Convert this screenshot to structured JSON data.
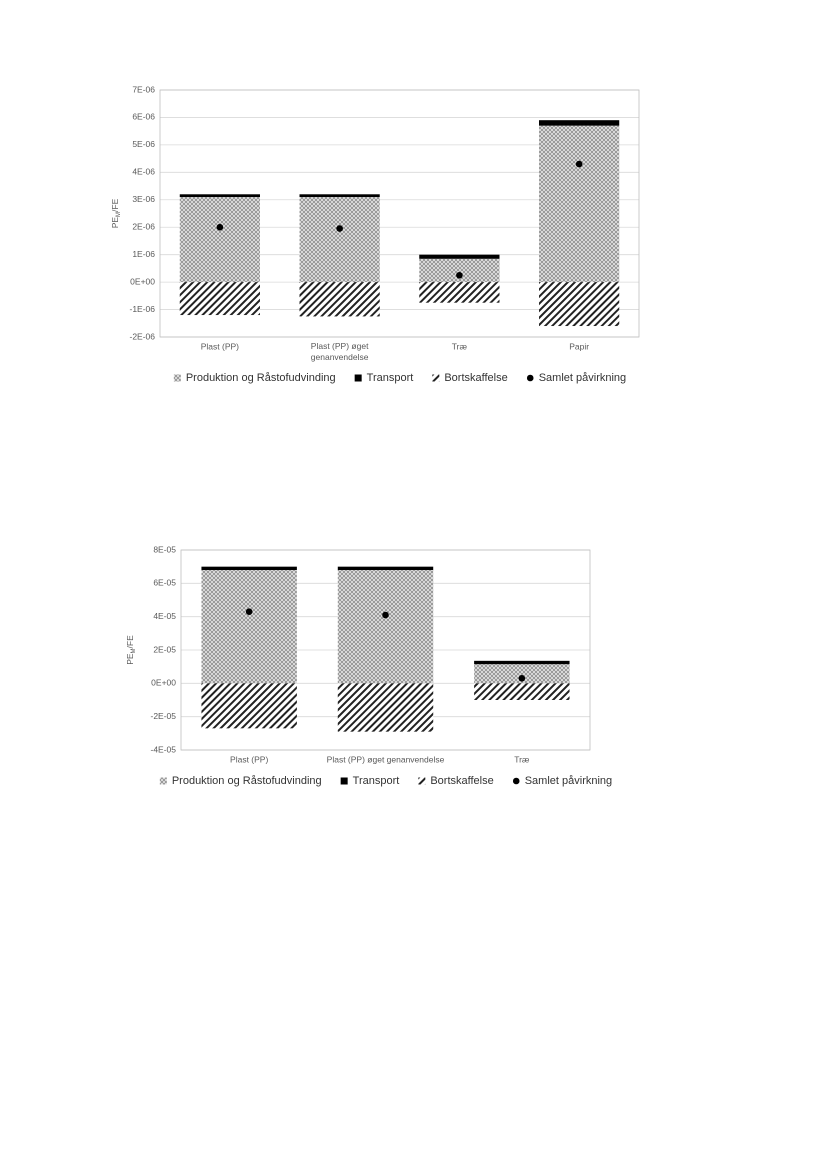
{
  "chart_data": [
    {
      "type": "bar",
      "ylabel": [
        "PE",
        "M",
        "/FE"
      ],
      "categories": [
        "Plast (PP)",
        "Plast (PP) øget genanvendelse",
        "Træ",
        "Papir"
      ],
      "series": [
        {
          "name": "Produktion og Råstofudvinding",
          "color": "#808080",
          "pattern": "crosshatch",
          "values": [
            3.1e-06,
            3.1e-06,
            8.5e-07,
            5.7e-06
          ]
        },
        {
          "name": "Transport",
          "color": "#000000",
          "pattern": "solid",
          "values": [
            1e-07,
            1e-07,
            1.5e-07,
            2e-07
          ]
        },
        {
          "name": "Bortskaffelse",
          "color": "#000000",
          "pattern": "diagonal",
          "values": [
            -1.2e-06,
            -1.25e-06,
            -7.5e-07,
            -1.6e-06
          ]
        },
        {
          "name": "Samlet påvirkning",
          "color": "#000000",
          "type": "scatter",
          "values": [
            2e-06,
            1.95e-06,
            2.5e-07,
            4.3e-06
          ]
        }
      ],
      "ylim": [
        -2e-06,
        7e-06
      ],
      "yticks": [
        {
          "value": -2e-06,
          "label": "-2E-06"
        },
        {
          "value": -1e-06,
          "label": "-1E-06"
        },
        {
          "value": 0,
          "label": "0E+00"
        },
        {
          "value": 1e-06,
          "label": "1E-06"
        },
        {
          "value": 2e-06,
          "label": "2E-06"
        },
        {
          "value": 3e-06,
          "label": "3E-06"
        },
        {
          "value": 4e-06,
          "label": "4E-06"
        },
        {
          "value": 5e-06,
          "label": "5E-06"
        },
        {
          "value": 6e-06,
          "label": "6E-06"
        },
        {
          "value": 7e-06,
          "label": "7E-06"
        }
      ],
      "grid": true,
      "legend": "bottom"
    },
    {
      "type": "bar",
      "ylabel": [
        "PE",
        "M",
        "/FE"
      ],
      "categories": [
        "Plast (PP)",
        "Plast (PP) øget genanvendelse",
        "Træ"
      ],
      "series": [
        {
          "name": "Produktion og Råstofudvinding",
          "color": "#808080",
          "pattern": "crosshatch",
          "values": [
            6.8e-05,
            6.8e-05,
            1.15e-05
          ]
        },
        {
          "name": "Transport",
          "color": "#000000",
          "pattern": "solid",
          "values": [
            2e-06,
            2e-06,
            2e-06
          ]
        },
        {
          "name": "Bortskaffelse",
          "color": "#000000",
          "pattern": "diagonal",
          "values": [
            -2.7e-05,
            -2.9e-05,
            -1e-05
          ]
        },
        {
          "name": "Samlet påvirkning",
          "color": "#000000",
          "type": "scatter",
          "values": [
            4.3e-05,
            4.1e-05,
            3e-06
          ]
        }
      ],
      "ylim": [
        -4e-05,
        8e-05
      ],
      "yticks": [
        {
          "value": -4e-05,
          "label": "-4E-05"
        },
        {
          "value": -2e-05,
          "label": "-2E-05"
        },
        {
          "value": 0,
          "label": "0E+00"
        },
        {
          "value": 2e-05,
          "label": "2E-05"
        },
        {
          "value": 4e-05,
          "label": "4E-05"
        },
        {
          "value": 6e-05,
          "label": "6E-05"
        },
        {
          "value": 8e-05,
          "label": "8E-05"
        }
      ],
      "grid": true,
      "legend": "bottom"
    }
  ]
}
